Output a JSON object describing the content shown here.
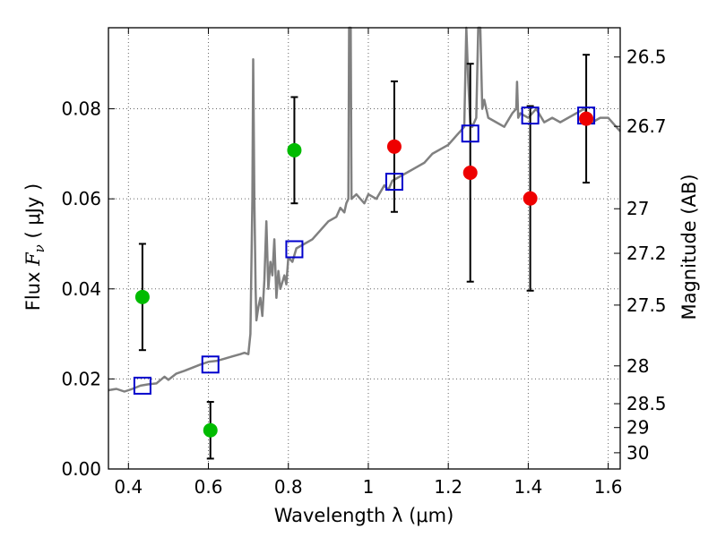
{
  "chart_data": {
    "type": "scatter",
    "xlabel": "Wavelength  λ (μm)",
    "ylabel": "Flux  F_ν  ( μJy )",
    "ylabel_parts": {
      "prefix": "Flux ",
      "symbol": "F",
      "subscript": "ν",
      "suffix": "  ( μJy )"
    },
    "y2label": "Magnitude (AB)",
    "xlim": [
      0.35,
      1.63
    ],
    "ylim": [
      0.0,
      0.098
    ],
    "x_ticks": [
      0.4,
      0.6,
      0.8,
      1.0,
      1.2,
      1.4,
      1.6
    ],
    "x_tick_labels": [
      "0.4",
      "0.6",
      "0.8",
      "1",
      "1.2",
      "1.4",
      "1.6"
    ],
    "y_ticks": [
      0.0,
      0.02,
      0.04,
      0.06,
      0.08
    ],
    "y_tick_labels": [
      "0.00",
      "0.02",
      "0.04",
      "0.06",
      "0.08"
    ],
    "grid": true,
    "magnitude_ticks": [
      {
        "label": "26.5",
        "flux": 0.0915
      },
      {
        "label": "26.7",
        "flux": 0.0761
      },
      {
        "label": "27",
        "flux": 0.0578
      },
      {
        "label": "27.2",
        "flux": 0.0479
      },
      {
        "label": "27.5",
        "flux": 0.0364
      },
      {
        "label": "28",
        "flux": 0.0229
      },
      {
        "label": "28.5",
        "flux": 0.0145
      },
      {
        "label": "29",
        "flux": 0.0092
      },
      {
        "label": "30",
        "flux": 0.0036
      }
    ],
    "series": [
      {
        "name": "model_spectrum",
        "kind": "line",
        "color": "#808080",
        "points": [
          [
            0.35,
            0.0175
          ],
          [
            0.37,
            0.0178
          ],
          [
            0.39,
            0.0172
          ],
          [
            0.41,
            0.0178
          ],
          [
            0.43,
            0.0185
          ],
          [
            0.45,
            0.0188
          ],
          [
            0.47,
            0.019
          ],
          [
            0.49,
            0.0205
          ],
          [
            0.5,
            0.0198
          ],
          [
            0.52,
            0.0212
          ],
          [
            0.54,
            0.0218
          ],
          [
            0.56,
            0.0225
          ],
          [
            0.58,
            0.0232
          ],
          [
            0.6,
            0.0238
          ],
          [
            0.62,
            0.024
          ],
          [
            0.64,
            0.0245
          ],
          [
            0.66,
            0.025
          ],
          [
            0.68,
            0.0255
          ],
          [
            0.69,
            0.0258
          ],
          [
            0.7,
            0.0255
          ],
          [
            0.705,
            0.03
          ],
          [
            0.71,
            0.06
          ],
          [
            0.712,
            0.091
          ],
          [
            0.715,
            0.06
          ],
          [
            0.718,
            0.04
          ],
          [
            0.72,
            0.033
          ],
          [
            0.725,
            0.036
          ],
          [
            0.73,
            0.038
          ],
          [
            0.735,
            0.034
          ],
          [
            0.74,
            0.042
          ],
          [
            0.745,
            0.055
          ],
          [
            0.75,
            0.04
          ],
          [
            0.755,
            0.046
          ],
          [
            0.76,
            0.043
          ],
          [
            0.765,
            0.051
          ],
          [
            0.77,
            0.038
          ],
          [
            0.775,
            0.044
          ],
          [
            0.78,
            0.04
          ],
          [
            0.79,
            0.043
          ],
          [
            0.795,
            0.041
          ],
          [
            0.8,
            0.047
          ],
          [
            0.81,
            0.046
          ],
          [
            0.82,
            0.049
          ],
          [
            0.84,
            0.05
          ],
          [
            0.86,
            0.051
          ],
          [
            0.88,
            0.053
          ],
          [
            0.9,
            0.055
          ],
          [
            0.92,
            0.056
          ],
          [
            0.93,
            0.058
          ],
          [
            0.94,
            0.057
          ],
          [
            0.945,
            0.059
          ],
          [
            0.95,
            0.06
          ],
          [
            0.952,
            0.098
          ],
          [
            0.956,
            0.098
          ],
          [
            0.958,
            0.06
          ],
          [
            0.97,
            0.061
          ],
          [
            0.99,
            0.059
          ],
          [
            1.0,
            0.061
          ],
          [
            1.02,
            0.06
          ],
          [
            1.04,
            0.063
          ],
          [
            1.05,
            0.062
          ],
          [
            1.06,
            0.064
          ],
          [
            1.08,
            0.065
          ],
          [
            1.1,
            0.066
          ],
          [
            1.12,
            0.067
          ],
          [
            1.14,
            0.068
          ],
          [
            1.16,
            0.07
          ],
          [
            1.18,
            0.071
          ],
          [
            1.2,
            0.072
          ],
          [
            1.22,
            0.074
          ],
          [
            1.23,
            0.075
          ],
          [
            1.24,
            0.076
          ],
          [
            1.245,
            0.098
          ],
          [
            1.25,
            0.086
          ],
          [
            1.255,
            0.077
          ],
          [
            1.26,
            0.076
          ],
          [
            1.27,
            0.078
          ],
          [
            1.275,
            0.098
          ],
          [
            1.28,
            0.098
          ],
          [
            1.285,
            0.08
          ],
          [
            1.29,
            0.082
          ],
          [
            1.3,
            0.078
          ],
          [
            1.32,
            0.077
          ],
          [
            1.34,
            0.076
          ],
          [
            1.36,
            0.079
          ],
          [
            1.37,
            0.08
          ],
          [
            1.372,
            0.086
          ],
          [
            1.375,
            0.078
          ],
          [
            1.38,
            0.079
          ],
          [
            1.4,
            0.078
          ],
          [
            1.42,
            0.08
          ],
          [
            1.44,
            0.077
          ],
          [
            1.46,
            0.078
          ],
          [
            1.48,
            0.077
          ],
          [
            1.5,
            0.078
          ],
          [
            1.52,
            0.079
          ],
          [
            1.54,
            0.08
          ],
          [
            1.56,
            0.077
          ],
          [
            1.58,
            0.078
          ],
          [
            1.6,
            0.078
          ],
          [
            1.62,
            0.076
          ],
          [
            1.63,
            0.075
          ]
        ]
      },
      {
        "name": "model_band_flux",
        "kind": "open-square",
        "color": "#0000cc",
        "x": [
          0.435,
          0.605,
          0.815,
          1.065,
          1.255,
          1.405,
          1.545
        ],
        "y": [
          0.0185,
          0.0232,
          0.0488,
          0.0638,
          0.0745,
          0.0785,
          0.0785
        ]
      },
      {
        "name": "optical_detections",
        "kind": "filled-circle",
        "color": "#00bb00",
        "x": [
          0.435,
          0.605,
          0.815
        ],
        "y": [
          0.0382,
          0.0086,
          0.0708
        ],
        "yerr": [
          0.0118,
          0.0063,
          0.0118
        ]
      },
      {
        "name": "nir_detections",
        "kind": "filled-circle",
        "color": "#ee0000",
        "x": [
          1.065,
          1.255,
          1.405,
          1.545
        ],
        "y": [
          0.0716,
          0.0658,
          0.0601,
          0.0778
        ],
        "yerr": [
          0.0145,
          0.0242,
          0.0205,
          0.0142
        ]
      }
    ]
  }
}
